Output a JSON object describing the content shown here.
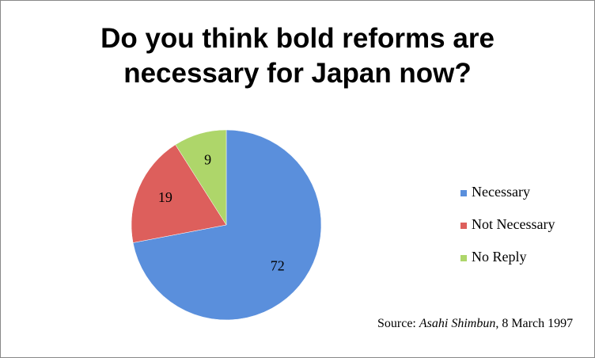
{
  "chart_data": {
    "type": "pie",
    "title": "Do you think bold reforms are necessary for Japan now?",
    "categories": [
      "Necessary",
      "Not Necessary",
      "No Reply"
    ],
    "values": [
      72,
      19,
      9
    ],
    "colors": [
      "#5a8fdc",
      "#dd5f5c",
      "#aed66a"
    ],
    "legend": "right",
    "source_prefix": "Source:",
    "source_publication": "Asahi Shimbun",
    "source_suffix": ", 8 March 1997"
  }
}
